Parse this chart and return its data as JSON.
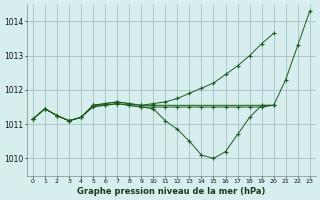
{
  "title": "Graphe pression niveau de la mer (hPa)",
  "background_color": "#d7eeee",
  "line_color": "#1a5c1a",
  "xlim": [
    -0.5,
    23.5
  ],
  "ylim": [
    1009.5,
    1014.5
  ],
  "xticks": [
    0,
    1,
    2,
    3,
    4,
    5,
    6,
    7,
    8,
    9,
    10,
    11,
    12,
    13,
    14,
    15,
    16,
    17,
    18,
    19,
    20,
    21,
    22,
    23
  ],
  "yticks": [
    1010,
    1011,
    1012,
    1013,
    1014
  ],
  "series": [
    {
      "x": [
        0,
        1,
        2,
        3,
        4,
        5,
        6,
        7,
        8,
        9,
        10,
        11,
        12,
        13,
        14,
        15,
        16,
        17,
        18,
        19,
        20
      ],
      "y": [
        1011.15,
        1011.45,
        1011.25,
        1011.1,
        1011.2,
        1011.5,
        1011.55,
        1011.6,
        1011.55,
        1011.5,
        1011.5,
        1011.5,
        1011.5,
        1011.5,
        1011.5,
        1011.5,
        1011.5,
        1011.5,
        1011.5,
        1011.5,
        1011.55
      ]
    },
    {
      "x": [
        0,
        1,
        2,
        3,
        4,
        5,
        6,
        7,
        8,
        9,
        10,
        11,
        12,
        13,
        14,
        15,
        16,
        17,
        18,
        19,
        20,
        21,
        22,
        23
      ],
      "y": [
        1011.15,
        1011.45,
        1011.25,
        1011.1,
        1011.2,
        1011.55,
        1011.6,
        1011.65,
        1011.6,
        1011.55,
        1011.6,
        1011.65,
        1011.75,
        1011.9,
        1012.05,
        1012.2,
        1012.45,
        1012.7,
        1013.0,
        1013.35,
        1013.65,
        null,
        null,
        null
      ]
    },
    {
      "x": [
        0,
        1,
        2,
        3,
        4,
        5,
        6,
        7,
        8,
        9,
        10,
        11,
        12,
        13,
        14,
        15,
        16,
        17,
        18,
        19,
        20,
        21,
        22,
        23
      ],
      "y": [
        1011.15,
        1011.45,
        1011.25,
        1011.1,
        1011.2,
        1011.55,
        1011.55,
        1011.6,
        1011.55,
        1011.5,
        1011.45,
        1011.1,
        1010.85,
        1010.5,
        1010.1,
        1010.0,
        1010.2,
        1010.7,
        1011.2,
        1011.55,
        1011.55,
        null,
        null,
        null
      ]
    },
    {
      "x": [
        0,
        1,
        2,
        3,
        4,
        5,
        6,
        7,
        8,
        9,
        10,
        20,
        21,
        22,
        23
      ],
      "y": [
        1011.15,
        1011.45,
        1011.25,
        1011.1,
        1011.2,
        1011.55,
        1011.6,
        1011.65,
        1011.6,
        1011.55,
        1011.55,
        1011.55,
        1012.3,
        1013.3,
        1014.3
      ]
    }
  ]
}
